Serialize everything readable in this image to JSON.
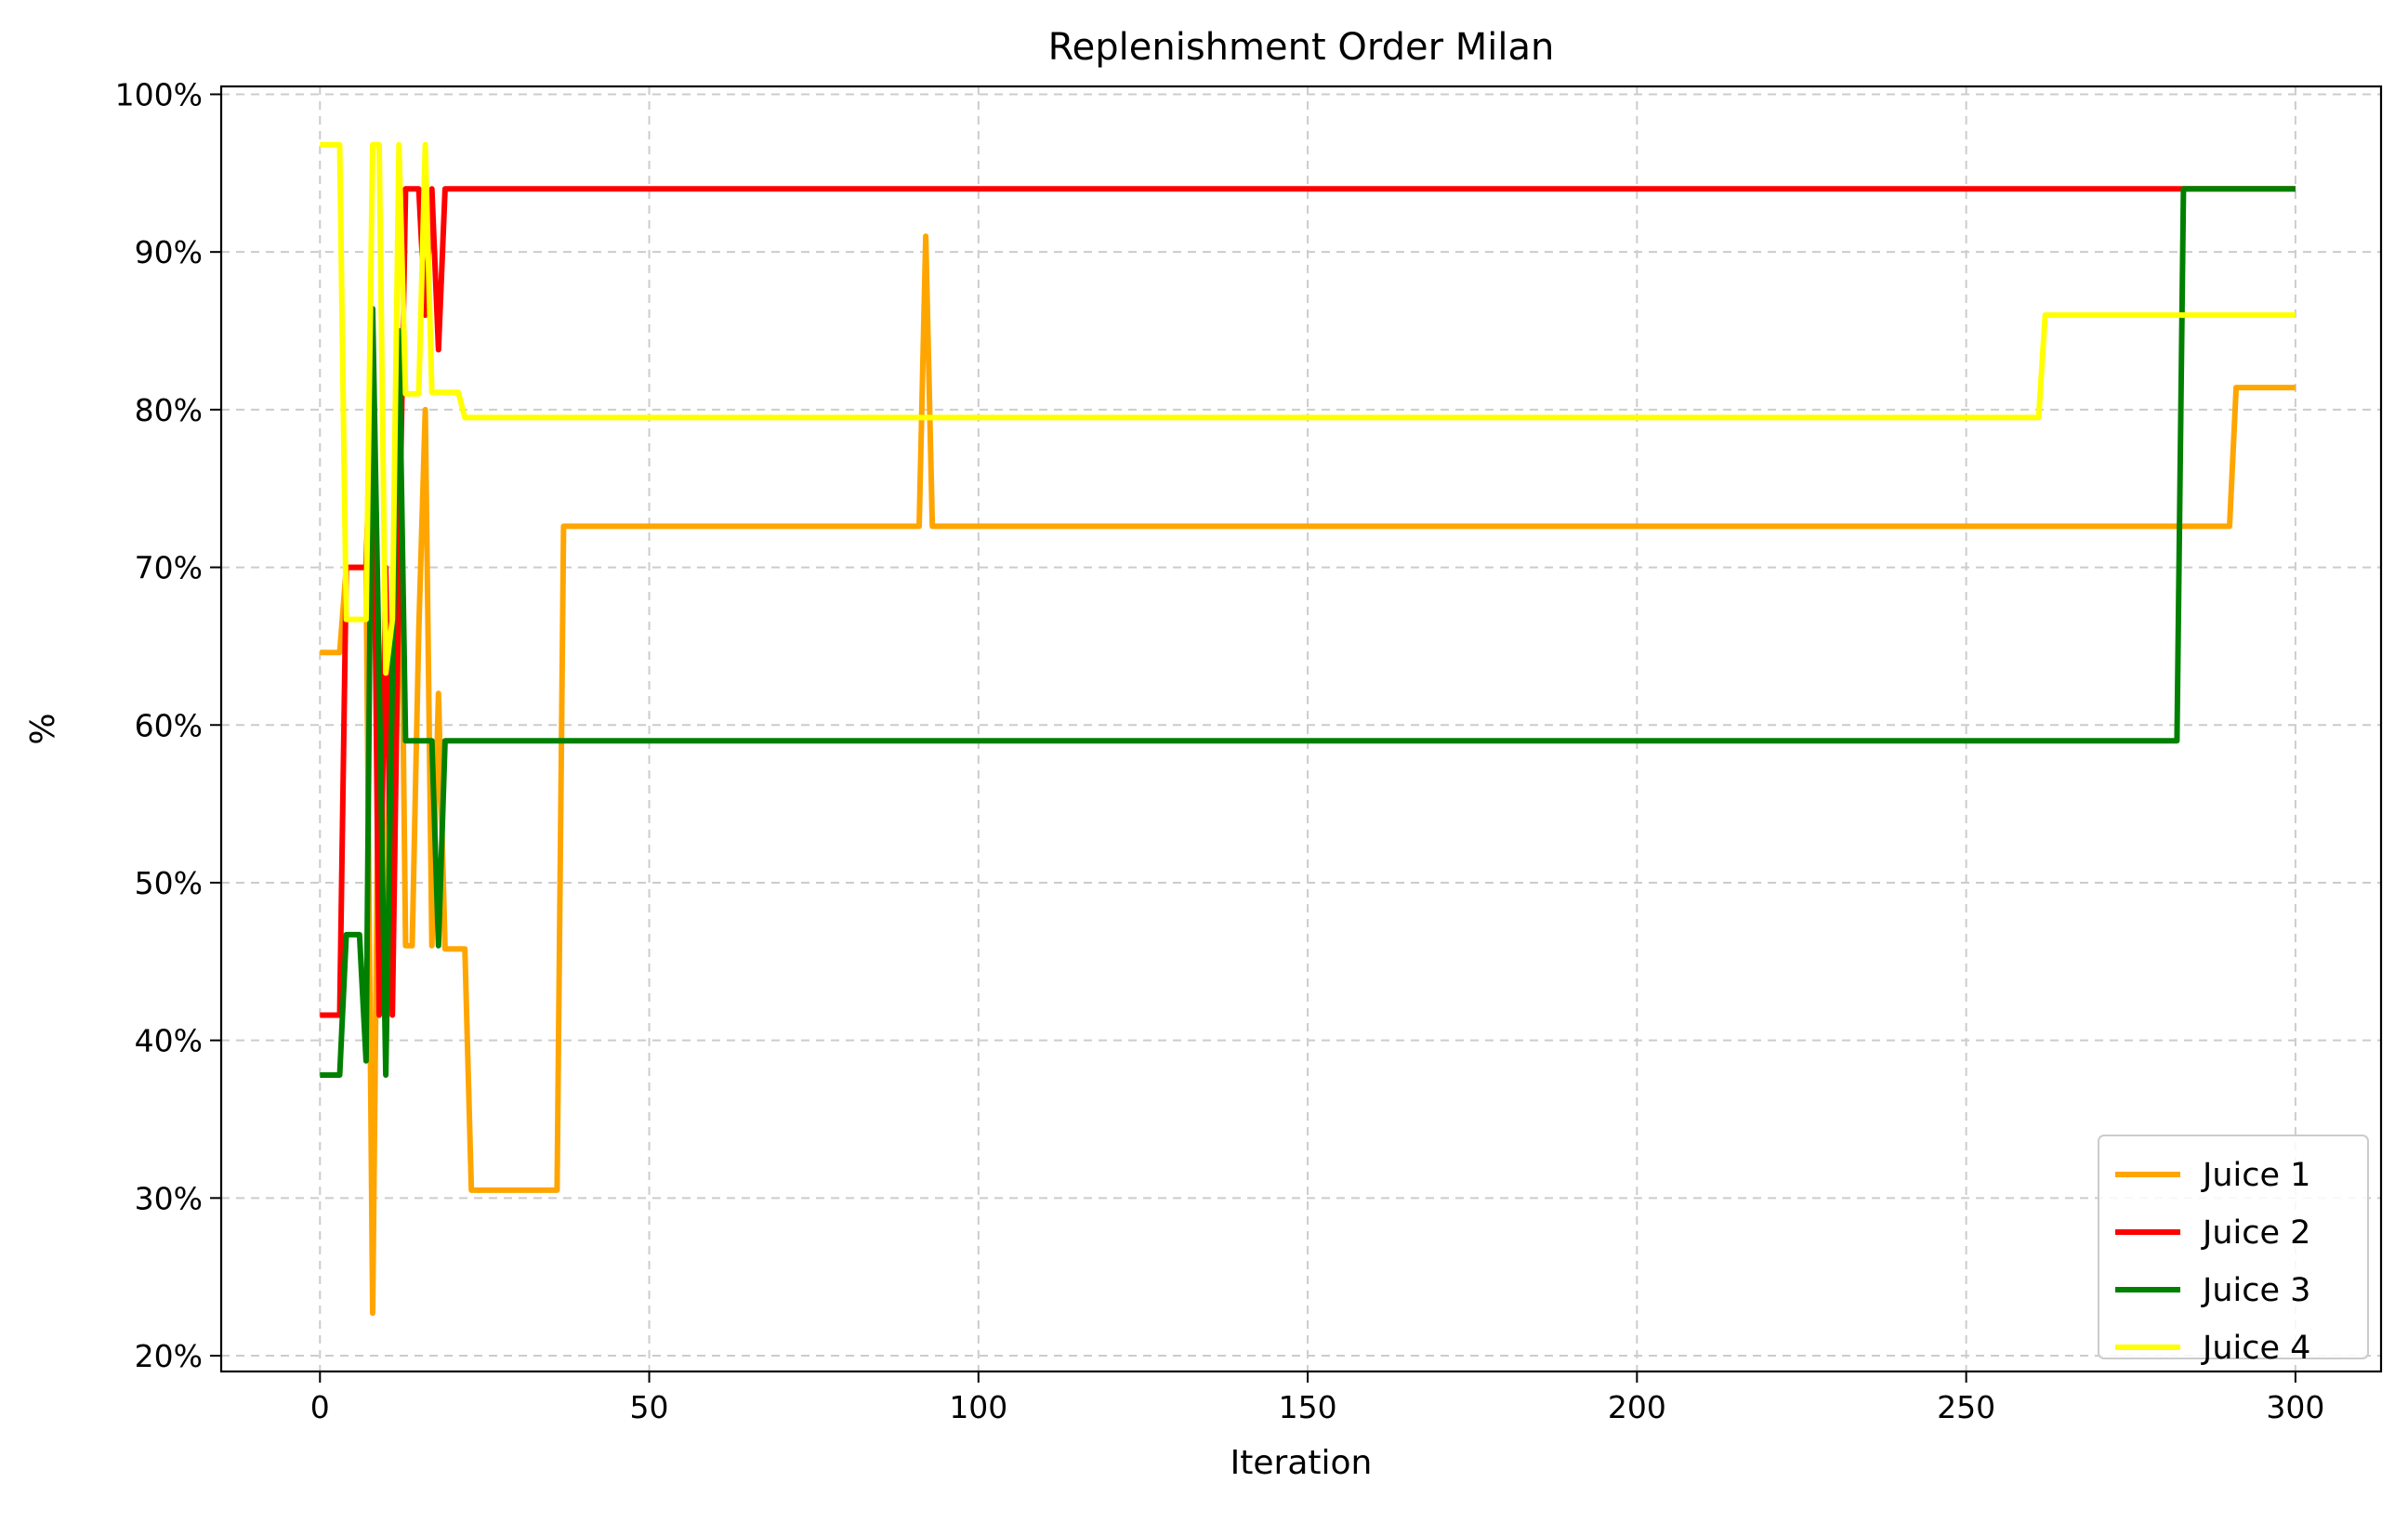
{
  "chart_data": {
    "type": "line",
    "title": "Replenishment Order Milan",
    "xlabel": "Iteration",
    "ylabel": "%",
    "xlim": [
      -15,
      313
    ],
    "ylim": [
      19,
      100.5
    ],
    "xticks": [
      0,
      50,
      100,
      150,
      200,
      250,
      300
    ],
    "yticks": [
      20,
      30,
      40,
      50,
      60,
      70,
      80,
      90,
      100
    ],
    "ytick_suffix": "%",
    "grid": true,
    "legend_position": "lower-right",
    "series": [
      {
        "name": "Juice 1",
        "color": "#FFA500",
        "points": [
          [
            0,
            64.6
          ],
          [
            3,
            64.6
          ],
          [
            4,
            70
          ],
          [
            7,
            70
          ],
          [
            8,
            22.7
          ],
          [
            9,
            63
          ],
          [
            10,
            46
          ],
          [
            11,
            66
          ],
          [
            12,
            84
          ],
          [
            13,
            46
          ],
          [
            14,
            46
          ],
          [
            15,
            66
          ],
          [
            16,
            80
          ],
          [
            17,
            46
          ],
          [
            18,
            62
          ],
          [
            19,
            45.8
          ],
          [
            22,
            45.8
          ],
          [
            23,
            30.5
          ],
          [
            36,
            30.5
          ],
          [
            37,
            72.6
          ],
          [
            91,
            72.6
          ],
          [
            92,
            91
          ],
          [
            93,
            72.6
          ],
          [
            290,
            72.6
          ],
          [
            291,
            81.4
          ],
          [
            300,
            81.4
          ]
        ]
      },
      {
        "name": "Juice 2",
        "color": "#FF0000",
        "points": [
          [
            0,
            41.6
          ],
          [
            3,
            41.6
          ],
          [
            4,
            70
          ],
          [
            7,
            70
          ],
          [
            8,
            83
          ],
          [
            9,
            41.6
          ],
          [
            10,
            70
          ],
          [
            11,
            41.6
          ],
          [
            12,
            70
          ],
          [
            13,
            94
          ],
          [
            15,
            94
          ],
          [
            16,
            86
          ],
          [
            17,
            94
          ],
          [
            18,
            83.8
          ],
          [
            19,
            94
          ],
          [
            300,
            94
          ]
        ]
      },
      {
        "name": "Juice 3",
        "color": "#008000",
        "points": [
          [
            0,
            37.8
          ],
          [
            3,
            37.8
          ],
          [
            4,
            46.7
          ],
          [
            6,
            46.7
          ],
          [
            7,
            38.7
          ],
          [
            8,
            86.4
          ],
          [
            9,
            63
          ],
          [
            10,
            37.8
          ],
          [
            11,
            63
          ],
          [
            12,
            85
          ],
          [
            13,
            59
          ],
          [
            17,
            59
          ],
          [
            18,
            46
          ],
          [
            19,
            59
          ],
          [
            282,
            59
          ],
          [
            283,
            94
          ],
          [
            300,
            94
          ]
        ]
      },
      {
        "name": "Juice 4",
        "color": "#FFFF00",
        "points": [
          [
            0,
            96.8
          ],
          [
            3,
            96.8
          ],
          [
            4,
            66.7
          ],
          [
            7,
            66.7
          ],
          [
            8,
            96.8
          ],
          [
            9,
            96.8
          ],
          [
            10,
            63.3
          ],
          [
            11,
            66.7
          ],
          [
            12,
            96.8
          ],
          [
            13,
            81
          ],
          [
            15,
            81
          ],
          [
            16,
            96.8
          ],
          [
            17,
            81.1
          ],
          [
            21,
            81.1
          ],
          [
            22,
            79.5
          ],
          [
            261,
            79.5
          ],
          [
            262,
            86
          ],
          [
            300,
            86
          ]
        ]
      }
    ]
  }
}
